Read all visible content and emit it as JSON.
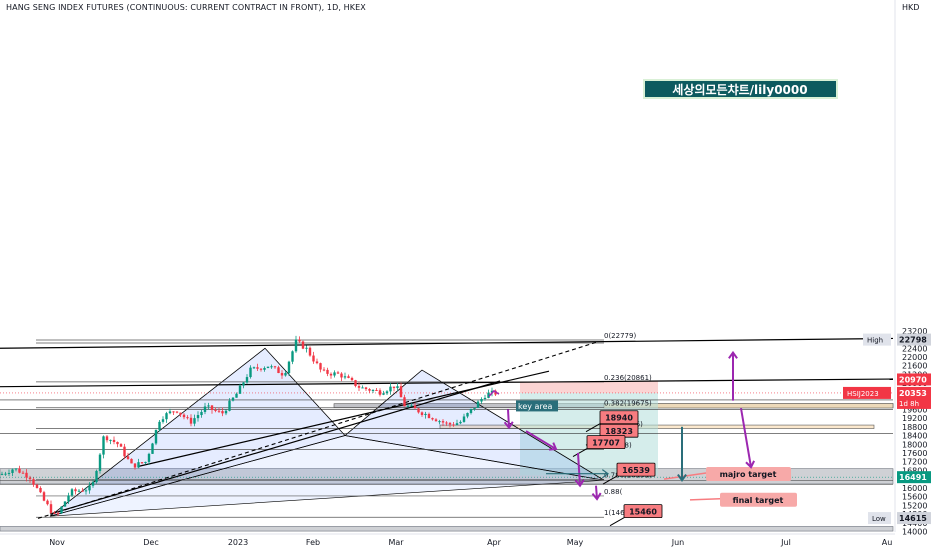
{
  "header": {
    "title": "HANG SENG INDEX FUTURES (CONTINUOUS: CURRENT CONTRACT IN FRONT), 1D, HKEX",
    "currency": "HKD"
  },
  "chart_data": {
    "type": "candlestick",
    "y_ticks": [
      14000,
      14400,
      14800,
      15200,
      15600,
      16000,
      16400,
      16800,
      17200,
      17600,
      18000,
      18400,
      18800,
      19200,
      19600,
      20000,
      20400,
      20800,
      21200,
      21600,
      22000,
      22400,
      22800,
      23200
    ],
    "ylim": [
      13950,
      23400
    ],
    "x_ticks": [
      "Nov",
      "Dec",
      "2023",
      "Feb",
      "Mar",
      "Apr",
      "May",
      "Jun",
      "Jul",
      "Au"
    ],
    "price_tags": [
      {
        "label": "High",
        "value": "22798",
        "color": "#d1d4dc",
        "text": "#131722"
      },
      {
        "label": "",
        "value": "20970",
        "color": "#f23645",
        "text": "#ffffff"
      },
      {
        "label": "HSIJ2023",
        "value": "20353",
        "sub": "1d 8h",
        "color": "#f23645",
        "text": "#ffffff"
      },
      {
        "label": "",
        "value": "16491",
        "color": "#089981",
        "text": "#ffffff"
      },
      {
        "label": "Low",
        "value": "14615",
        "color": "#d1d4dc",
        "text": "#131722"
      }
    ],
    "fib_levels": [
      {
        "label": "0(22779)",
        "value": 22779
      },
      {
        "label": "0.236(20861)",
        "value": 20861
      },
      {
        "label": "0.382(19675)",
        "value": 19675
      },
      {
        "label": "0.5(18716)",
        "value": 18716
      },
      {
        "label": "(17758)",
        "value": 17758
      },
      {
        "label": "0.786(16393)",
        "value": 16393
      },
      {
        "label": "0.88(",
        "value": 15630
      },
      {
        "label": "1(14654)",
        "value": 14654
      }
    ],
    "annotations": {
      "key_area": "key area",
      "targets": [
        "18940",
        "18323",
        "17707",
        "16539",
        "15460"
      ],
      "major_target": "majro  target",
      "final_target": "final   target",
      "watermark": "세상의모든챠트/lily0000"
    }
  }
}
